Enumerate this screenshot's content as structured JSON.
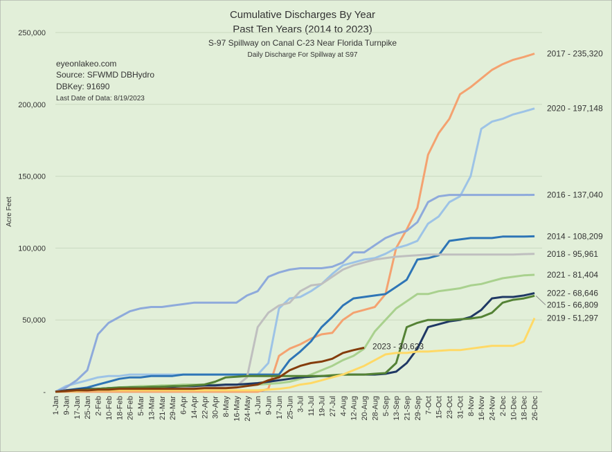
{
  "chart_data": {
    "type": "line",
    "title": "Cumulative Discharges By Year",
    "subtitle": "Past Ten Years (2014 to 2023)",
    "subtitle2": "S-97 Spillway on Canal C-23 Near Florida Turnpike",
    "subtitle3": "Daily Discharge For Spillway at S97",
    "notes": [
      "eyeonlakeo.com",
      "Source: SFWMD DBHydro",
      "DBKey: 91690",
      "Last Date of Data: 8/19/2023"
    ],
    "y_label": "Acre Feet",
    "categories": [
      "1-Jan",
      "9-Jan",
      "17-Jan",
      "25-Jan",
      "2-Feb",
      "10-Feb",
      "18-Feb",
      "26-Feb",
      "5-Mar",
      "13-Mar",
      "21-Mar",
      "29-Mar",
      "6-Apr",
      "14-Apr",
      "22-Apr",
      "30-Apr",
      "8-May",
      "16-May",
      "24-May",
      "1-Jun",
      "9-Jun",
      "17-Jun",
      "25-Jun",
      "3-Jul",
      "11-Jul",
      "19-Jul",
      "27-Jul",
      "4-Aug",
      "12-Aug",
      "20-Aug",
      "28-Aug",
      "5-Sep",
      "13-Sep",
      "21-Sep",
      "29-Sep",
      "7-Oct",
      "15-Oct",
      "23-Oct",
      "31-Oct",
      "8-Nov",
      "16-Nov",
      "24-Nov",
      "2-Dec",
      "10-Dec",
      "18-Dec",
      "26-Dec"
    ],
    "ylim": [
      0,
      250000
    ],
    "yticks": [
      {
        "value": 0,
        "label": "-"
      },
      {
        "value": 50000,
        "label": "50,000"
      },
      {
        "value": 100000,
        "label": "100,000"
      },
      {
        "value": 150000,
        "label": "150,000"
      },
      {
        "value": 200000,
        "label": "200,000"
      },
      {
        "value": 250000,
        "label": "250,000"
      }
    ],
    "grid": true,
    "series": [
      {
        "label": "2017 - 235,320",
        "color": "#f4a270",
        "values": [
          0,
          0,
          0,
          0,
          0,
          0,
          0,
          0,
          0,
          0,
          0,
          0,
          0,
          0,
          0,
          0,
          0,
          0,
          0,
          0,
          2000,
          25000,
          30000,
          33000,
          37000,
          40000,
          41000,
          50000,
          55000,
          57000,
          59000,
          68000,
          100000,
          113000,
          128000,
          165000,
          180000,
          190000,
          207000,
          212000,
          218000,
          224000,
          228000,
          231000,
          233000,
          235320
        ]
      },
      {
        "label": "2020 - 197,148",
        "color": "#9dc3e6",
        "values": [
          0,
          4000,
          6000,
          8000,
          10000,
          11000,
          11000,
          12000,
          12000,
          12000,
          12000,
          12000,
          12000,
          12000,
          12000,
          12000,
          12000,
          12000,
          12000,
          12000,
          20000,
          58000,
          65000,
          66000,
          70000,
          75000,
          82000,
          88000,
          90000,
          92000,
          93000,
          96000,
          100000,
          102000,
          105000,
          117000,
          122000,
          132000,
          136000,
          150000,
          183000,
          188000,
          190000,
          193000,
          195000,
          197148
        ]
      },
      {
        "label": "2016 - 137,040",
        "color": "#8eaadb",
        "values": [
          0,
          3000,
          8000,
          15000,
          40000,
          48000,
          52000,
          56000,
          58000,
          59000,
          59000,
          60000,
          61000,
          62000,
          62000,
          62000,
          62000,
          62000,
          67000,
          70000,
          80000,
          83000,
          85000,
          86000,
          86000,
          86000,
          87000,
          90000,
          97000,
          97000,
          102000,
          107000,
          110000,
          112000,
          118000,
          132000,
          136000,
          137000,
          137000,
          137000,
          137000,
          137000,
          137000,
          137000,
          137000,
          137040
        ]
      },
      {
        "label": "2014 - 108,209",
        "color": "#2e75b6",
        "values": [
          0,
          1000,
          2000,
          3000,
          5000,
          7000,
          9000,
          10000,
          10000,
          11000,
          11000,
          11000,
          12000,
          12000,
          12000,
          12000,
          12000,
          12000,
          12000,
          12000,
          12000,
          12000,
          22000,
          28000,
          35000,
          45000,
          52000,
          60000,
          65000,
          66000,
          67000,
          68000,
          73000,
          78000,
          92000,
          93000,
          95000,
          105000,
          106000,
          107000,
          107000,
          107000,
          108000,
          108000,
          108000,
          108209
        ]
      },
      {
        "label": "2018 - 95,961",
        "color": "#bfbfbf",
        "values": [
          0,
          500,
          1000,
          1000,
          1500,
          1500,
          2000,
          2000,
          2000,
          2500,
          2500,
          3000,
          3000,
          3000,
          3500,
          3500,
          4000,
          4000,
          10000,
          45000,
          55000,
          60000,
          62000,
          70000,
          74000,
          75000,
          80000,
          85000,
          88000,
          90000,
          92000,
          93000,
          94000,
          94500,
          95000,
          95500,
          95500,
          95500,
          95500,
          95500,
          95500,
          95500,
          95500,
          95500,
          95800,
          95961
        ]
      },
      {
        "label": "2021 - 81,404",
        "color": "#a9d18e",
        "values": [
          0,
          500,
          1000,
          1500,
          2000,
          2500,
          3000,
          3500,
          4000,
          4000,
          4500,
          4500,
          5000,
          5000,
          5000,
          5000,
          5000,
          5000,
          5000,
          5000,
          5500,
          6000,
          7000,
          9000,
          12000,
          15000,
          18000,
          22000,
          25000,
          30000,
          42000,
          50000,
          58000,
          63000,
          68000,
          68000,
          70000,
          71000,
          72000,
          74000,
          75000,
          77000,
          79000,
          80000,
          81000,
          81404
        ]
      },
      {
        "label": "2022 - 68,646",
        "color": "#1f3864",
        "values": [
          0,
          1000,
          1500,
          2000,
          2000,
          2500,
          2500,
          3000,
          3000,
          3000,
          3500,
          3500,
          4000,
          4000,
          4500,
          4500,
          5000,
          5000,
          5500,
          6000,
          7000,
          8000,
          9000,
          10000,
          10500,
          11000,
          11000,
          12000,
          12000,
          12000,
          12000,
          12500,
          14000,
          20000,
          30000,
          45000,
          47000,
          49000,
          50000,
          52000,
          57000,
          65000,
          66000,
          66000,
          67000,
          68646
        ]
      },
      {
        "label": "2015 - 66,809",
        "color": "#548235",
        "values": [
          0,
          500,
          1000,
          1500,
          2000,
          2500,
          3000,
          3000,
          3000,
          3500,
          3500,
          4000,
          4000,
          4500,
          5000,
          7000,
          10000,
          10500,
          11000,
          11000,
          11000,
          11000,
          11000,
          11000,
          11000,
          11000,
          11500,
          12000,
          12000,
          12000,
          12500,
          13000,
          20000,
          45000,
          48000,
          50000,
          50000,
          50000,
          50500,
          51000,
          52000,
          55000,
          62000,
          64000,
          65000,
          66809
        ]
      },
      {
        "label": "2019 - 51,297",
        "color": "#ffd966",
        "values": [
          0,
          500,
          500,
          1000,
          1000,
          1000,
          1000,
          1000,
          1000,
          1000,
          1000,
          1000,
          1000,
          1000,
          1000,
          1000,
          1000,
          1000,
          1000,
          1000,
          1500,
          2000,
          3000,
          5000,
          6000,
          8000,
          10000,
          12000,
          15000,
          18000,
          22000,
          26000,
          27000,
          27000,
          28000,
          28000,
          28500,
          29000,
          29000,
          30000,
          31000,
          32000,
          32000,
          32000,
          35000,
          51297
        ]
      },
      {
        "label": "2023 - 30,623",
        "color": "#843c0c",
        "values": [
          0,
          500,
          1000,
          1000,
          1500,
          1500,
          2000,
          2000,
          2000,
          2000,
          2000,
          2000,
          2000,
          2000,
          2500,
          2500,
          2500,
          3000,
          4000,
          5000,
          8000,
          10000,
          15000,
          18000,
          20000,
          21000,
          23000,
          27000,
          29000,
          30623,
          null,
          null,
          null,
          null,
          null,
          null,
          null,
          null,
          null,
          null,
          null,
          null,
          null,
          null,
          null,
          null
        ]
      }
    ]
  }
}
